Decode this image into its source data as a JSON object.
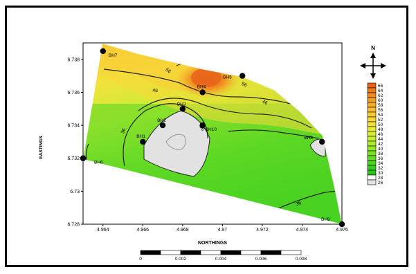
{
  "chart_data": {
    "type": "contour",
    "xlabel": "NORTHINGS",
    "ylabel": "EASTINGS",
    "xlim": [
      4.963,
      4.976
    ],
    "ylim": [
      6.728,
      6.739
    ],
    "x_ticks": [
      "4.964",
      "4.966",
      "4.968",
      "4.97",
      "4.972",
      "4.974",
      "4.976"
    ],
    "y_ticks": [
      "6.728",
      "6.73",
      "6.732",
      "6.734",
      "6.736",
      "6.738"
    ],
    "boreholes": [
      {
        "name": "BH7",
        "x": 4.964,
        "y": 6.7385
      },
      {
        "name": "BH5",
        "x": 4.971,
        "y": 6.737
      },
      {
        "name": "BH4",
        "x": 4.969,
        "y": 6.736
      },
      {
        "name": "BH3",
        "x": 4.968,
        "y": 6.735
      },
      {
        "name": "BH2",
        "x": 4.967,
        "y": 6.734
      },
      {
        "name": "BH10",
        "x": 4.969,
        "y": 6.734
      },
      {
        "name": "BH1",
        "x": 4.966,
        "y": 6.733
      },
      {
        "name": "BH8",
        "x": 4.975,
        "y": 6.733
      },
      {
        "name": "BH6",
        "x": 4.963,
        "y": 6.732
      },
      {
        "name": "BH9",
        "x": 4.976,
        "y": 6.728
      }
    ],
    "contour_labels": [
      "56",
      "56",
      "46",
      "46",
      "36",
      "36",
      "36"
    ],
    "legend": {
      "levels": [
        "66",
        "64",
        "62",
        "60",
        "58",
        "56",
        "54",
        "52",
        "50",
        "48",
        "46",
        "44",
        "42",
        "40",
        "38",
        "36",
        "34",
        "32",
        "30",
        "28",
        "26"
      ],
      "colors": [
        "#e8641a",
        "#ec7a1e",
        "#f08c22",
        "#f39e26",
        "#f6ae2a",
        "#f8bd30",
        "#f9cc36",
        "#f7d83a",
        "#f2e23c",
        "#e8ea3a",
        "#d8ee36",
        "#c4ee32",
        "#aeec2e",
        "#96e82a",
        "#7ee226",
        "#66dc24",
        "#4ed422",
        "#3acc20",
        "#2cc41e",
        "#ffffff",
        "#e2e2e2"
      ]
    },
    "north_label": "N",
    "scale_bar": {
      "ticks": [
        "0",
        "0.002",
        "0.004",
        "0.006",
        "0.008"
      ]
    }
  }
}
